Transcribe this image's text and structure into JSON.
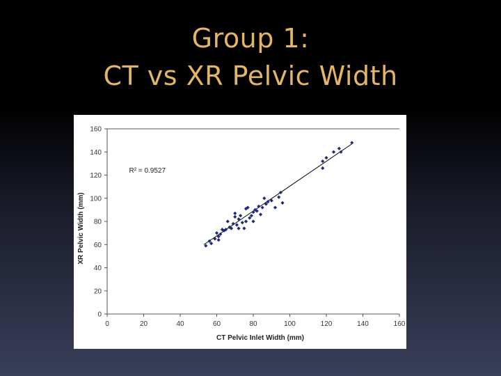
{
  "slide": {
    "title_line1": "Group 1:",
    "title_line2": "CT vs XR Pelvic Width",
    "title_color": "#e3b566"
  },
  "chart_data": {
    "type": "scatter",
    "xlabel": "CT Pelvic Inlet Width (mm)",
    "ylabel": "XR Pelvic Width (mm)",
    "xlim": [
      0,
      160
    ],
    "ylim": [
      0,
      160
    ],
    "x_ticks": [
      0,
      20,
      40,
      60,
      80,
      100,
      120,
      140,
      160
    ],
    "y_ticks": [
      0,
      20,
      40,
      60,
      80,
      100,
      120,
      140,
      160
    ],
    "annotation": "R² = 0.9527",
    "marker_color": "#1f2a7a",
    "trendline": {
      "x": [
        53,
        134
      ],
      "y": [
        60,
        147
      ]
    },
    "series": [
      {
        "points": [
          [
            54,
            59
          ],
          [
            56,
            63
          ],
          [
            57,
            61
          ],
          [
            59,
            65
          ],
          [
            60,
            70
          ],
          [
            61,
            67
          ],
          [
            61,
            64
          ],
          [
            62,
            69
          ],
          [
            63,
            73
          ],
          [
            64,
            72
          ],
          [
            65,
            73
          ],
          [
            66,
            80
          ],
          [
            67,
            75
          ],
          [
            68,
            74
          ],
          [
            69,
            78
          ],
          [
            70,
            84
          ],
          [
            70,
            87
          ],
          [
            71,
            77
          ],
          [
            72,
            82
          ],
          [
            72,
            74
          ],
          [
            73,
            85
          ],
          [
            74,
            79
          ],
          [
            75,
            74
          ],
          [
            76,
            80
          ],
          [
            76,
            91
          ],
          [
            77,
            92
          ],
          [
            78,
            83
          ],
          [
            79,
            85
          ],
          [
            80,
            88
          ],
          [
            80,
            80
          ],
          [
            81,
            90
          ],
          [
            82,
            89
          ],
          [
            83,
            93
          ],
          [
            84,
            86
          ],
          [
            85,
            92
          ],
          [
            86,
            100
          ],
          [
            87,
            95
          ],
          [
            88,
            97
          ],
          [
            90,
            98
          ],
          [
            92,
            92
          ],
          [
            94,
            101
          ],
          [
            95,
            105
          ],
          [
            96,
            96
          ],
          [
            118,
            126
          ],
          [
            118,
            132
          ],
          [
            120,
            135
          ],
          [
            124,
            140
          ],
          [
            127,
            143
          ],
          [
            128,
            140
          ],
          [
            134,
            148
          ]
        ]
      }
    ]
  }
}
